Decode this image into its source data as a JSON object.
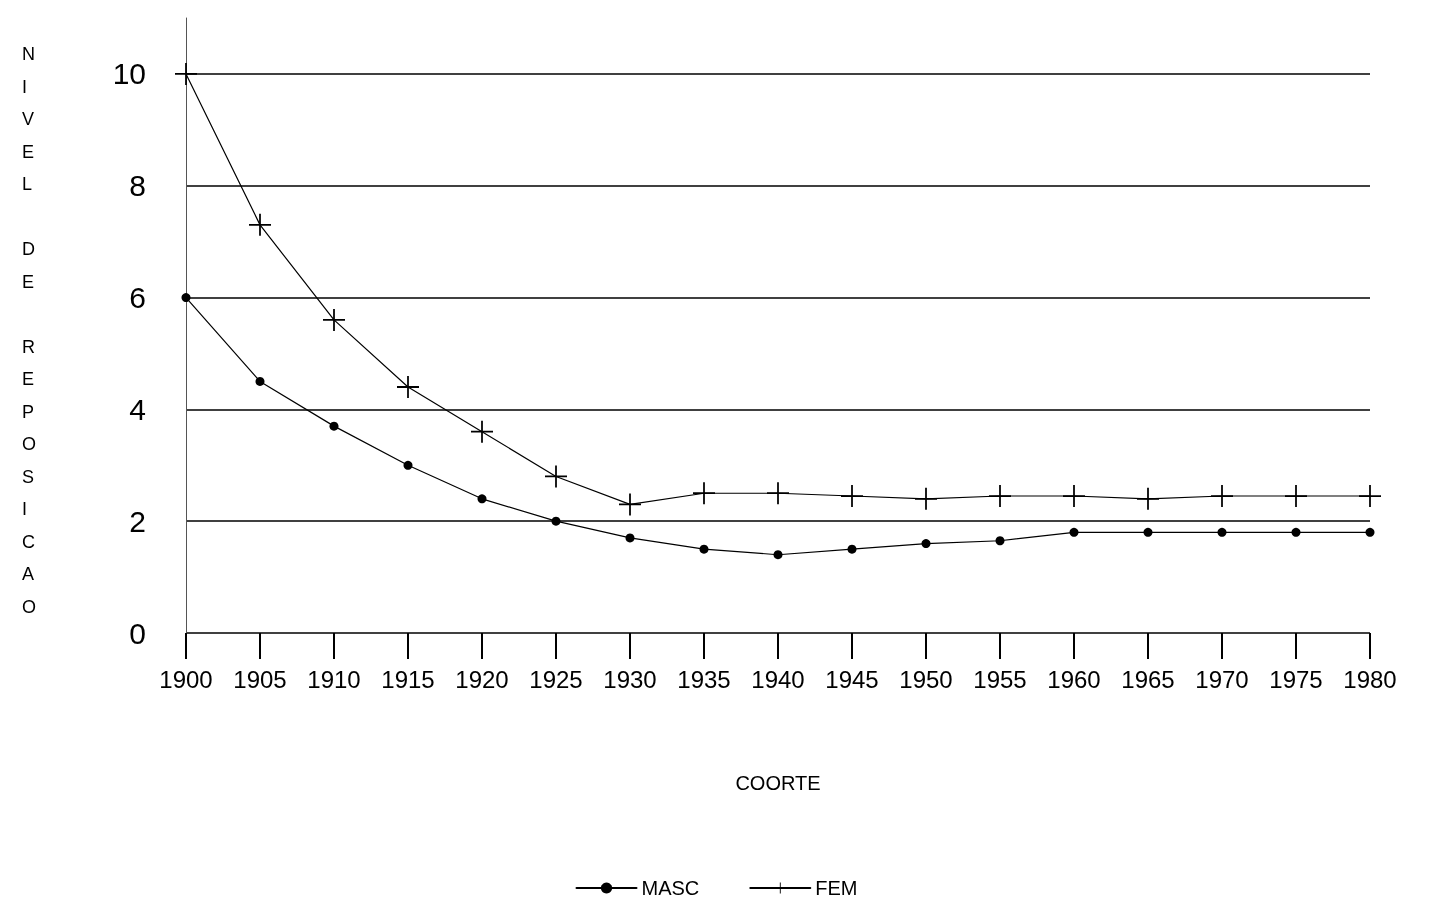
{
  "chart_data": {
    "type": "line",
    "xlabel": "COORTE",
    "ylabel": "NIVEL DE REPOSICAO",
    "x": [
      1900,
      1905,
      1910,
      1915,
      1920,
      1925,
      1930,
      1935,
      1940,
      1945,
      1950,
      1955,
      1960,
      1965,
      1970,
      1975,
      1980
    ],
    "series": [
      {
        "name": "MASC",
        "color": "#000000",
        "marker": "circle",
        "values": [
          6.0,
          4.5,
          3.7,
          3.0,
          2.4,
          2.0,
          1.7,
          1.5,
          1.4,
          1.5,
          1.6,
          1.65,
          1.8,
          1.8,
          1.8,
          1.8,
          1.8
        ]
      },
      {
        "name": "FEM",
        "color": "#000000",
        "marker": "cross",
        "values": [
          10.0,
          7.3,
          5.6,
          4.4,
          3.6,
          2.8,
          2.3,
          2.5,
          2.5,
          2.45,
          2.4,
          2.45,
          2.45,
          2.4,
          2.45,
          2.45,
          2.45
        ]
      }
    ],
    "xlim": [
      1900,
      1980
    ],
    "xticks": [
      1900,
      1905,
      1910,
      1915,
      1920,
      1925,
      1930,
      1935,
      1940,
      1945,
      1950,
      1955,
      1960,
      1965,
      1970,
      1975,
      1980
    ],
    "ylim": [
      0,
      11
    ],
    "yticks": [
      0,
      2,
      4,
      6,
      8,
      10
    ],
    "grid": "y",
    "legend": "bottom"
  }
}
